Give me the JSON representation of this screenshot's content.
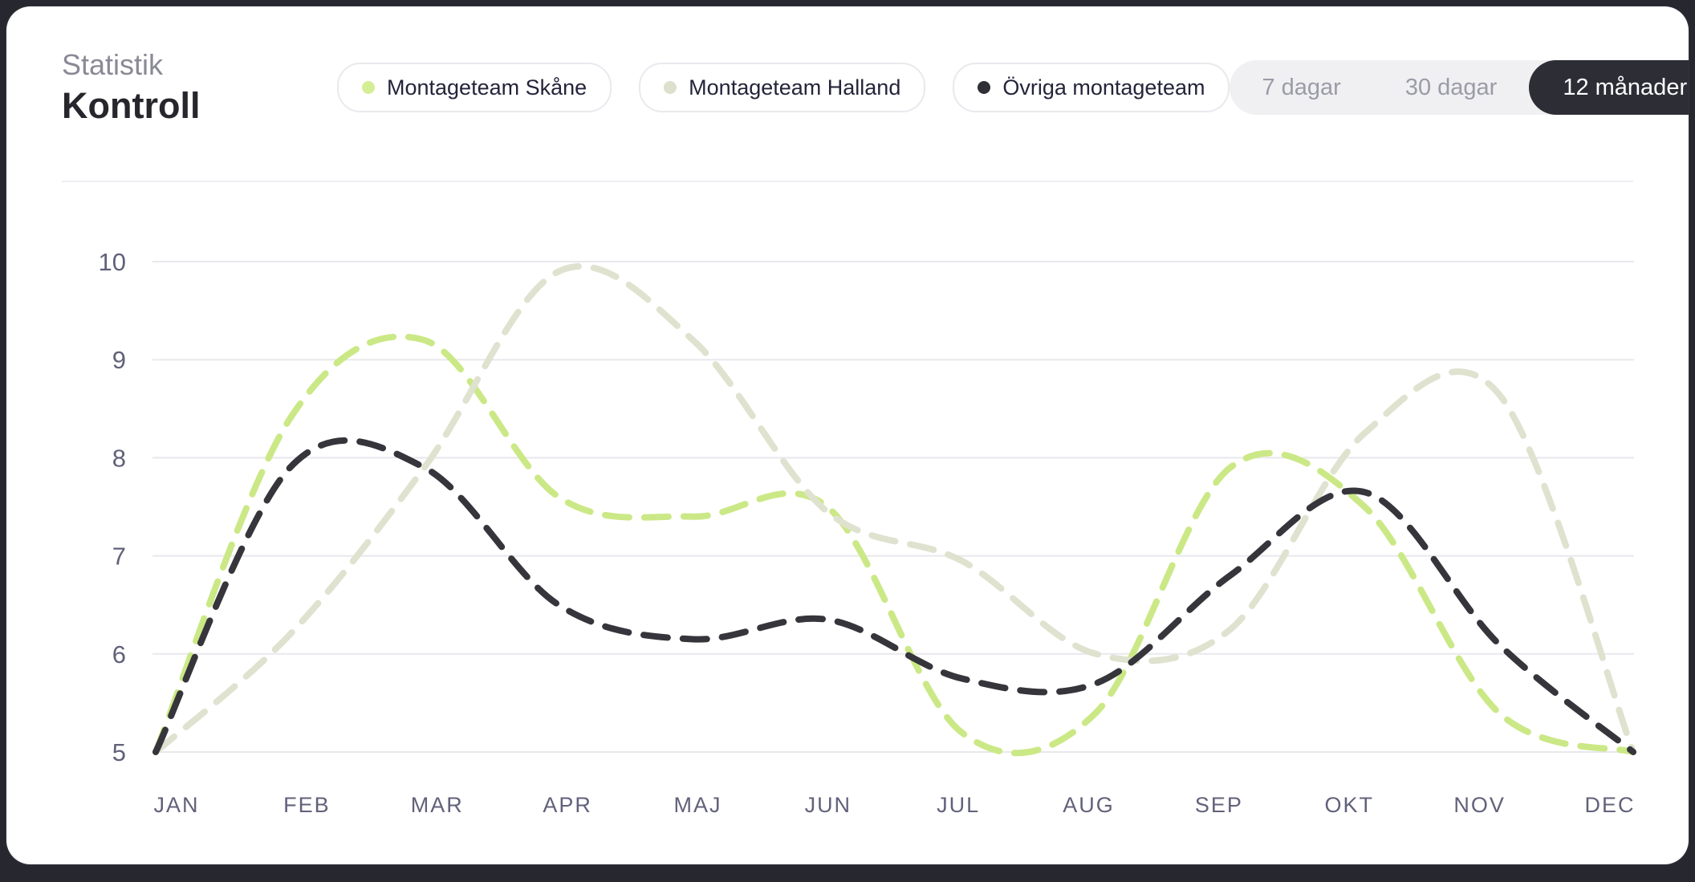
{
  "header": {
    "eyebrow": "Statistik",
    "title": "Kontroll"
  },
  "legend": [
    {
      "label": "Montageteam Skåne",
      "color": "#d5ed94"
    },
    {
      "label": "Montageteam Halland",
      "color": "#dde0cc"
    },
    {
      "label": "Övriga montageteam",
      "color": "#2f2f36"
    }
  ],
  "range_selector": {
    "options": [
      {
        "label": "7 dagar",
        "active": false
      },
      {
        "label": "30 dagar",
        "active": false
      },
      {
        "label": "12 månader",
        "active": true
      }
    ]
  },
  "chart_data": {
    "type": "line",
    "line_style": "dashed-smooth",
    "grid": "horizontal",
    "legend_position": "top",
    "ylim": [
      5,
      10
    ],
    "yticks": [
      10,
      9,
      8,
      7,
      6,
      5
    ],
    "categories": [
      "JAN",
      "FEB",
      "MAR",
      "APR",
      "MAJ",
      "JUN",
      "JUL",
      "AUG",
      "SEP",
      "OKT",
      "NOV",
      "DEC"
    ],
    "series": [
      {
        "name": "Montageteam Skåne",
        "color": "#cbe886",
        "values": [
          5.0,
          8.4,
          9.2,
          7.6,
          7.4,
          7.5,
          5.2,
          5.4,
          7.9,
          7.5,
          5.4,
          5.0
        ]
      },
      {
        "name": "Montageteam Halland",
        "color": "#dfe2cf",
        "values": [
          5.0,
          6.2,
          7.9,
          9.9,
          9.2,
          7.45,
          6.95,
          6.0,
          6.25,
          8.25,
          8.65,
          5.0
        ]
      },
      {
        "name": "Övriga montageteam",
        "color": "#35353b",
        "values": [
          5.0,
          7.9,
          7.9,
          6.5,
          6.15,
          6.35,
          5.75,
          5.7,
          6.8,
          7.65,
          6.1,
          5.0
        ]
      }
    ],
    "axis_color": "#61617a",
    "grid_color": "#e8e8ee"
  }
}
